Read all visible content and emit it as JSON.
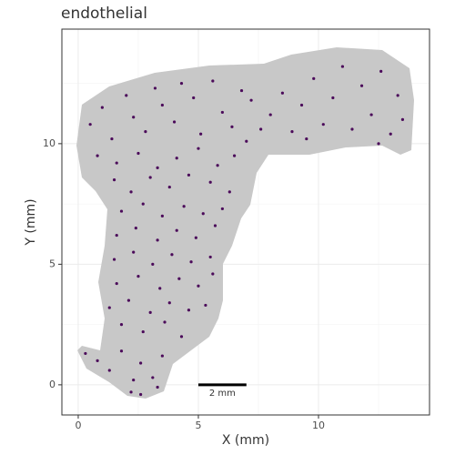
{
  "chart_data": {
    "type": "scatter",
    "title": "endothelial",
    "x_label": "X (mm)",
    "y_label": "Y (mm)",
    "color": "#4b0a5a",
    "grid": true,
    "xlim": [
      -0.68,
      14.62
    ],
    "ylim": [
      -1.25,
      14.75
    ],
    "xticks": [
      0,
      5,
      10
    ],
    "yticks": [
      0,
      5,
      10
    ],
    "scale_bar": {
      "label": "2 mm",
      "x": [
        5,
        7
      ],
      "y": 0
    },
    "x": [
      0.5,
      1.0,
      1.4,
      2.0,
      2.3,
      2.8,
      3.2,
      3.5,
      4.0,
      4.3,
      4.8,
      5.1,
      5.6,
      6.0,
      6.4,
      6.8,
      7.2,
      7.6,
      8.0,
      8.5,
      8.9,
      9.3,
      9.8,
      10.2,
      10.6,
      11.0,
      11.4,
      11.8,
      12.2,
      12.6,
      13.0,
      13.3,
      13.5,
      0.8,
      1.6,
      2.5,
      3.3,
      4.1,
      5.0,
      5.8,
      6.5,
      7.0,
      9.5,
      12.5,
      1.5,
      2.2,
      3.0,
      3.8,
      4.6,
      5.5,
      6.3,
      1.8,
      2.7,
      3.5,
      4.4,
      5.2,
      6.0,
      1.6,
      2.4,
      3.3,
      4.1,
      4.9,
      5.7,
      1.5,
      2.3,
      3.1,
      3.9,
      4.7,
      5.5,
      1.6,
      2.5,
      3.4,
      4.2,
      5.0,
      5.6,
      1.3,
      2.1,
      3.0,
      3.8,
      4.6,
      5.3,
      1.8,
      2.7,
      3.6,
      4.3,
      0.3,
      0.8,
      1.3,
      1.8,
      2.3,
      2.6,
      3.1,
      3.5,
      2.2,
      2.6,
      3.3
    ],
    "values": [
      10.8,
      11.5,
      10.2,
      12.0,
      11.1,
      10.5,
      12.3,
      11.6,
      10.9,
      12.5,
      11.9,
      10.4,
      12.6,
      11.3,
      10.7,
      12.2,
      11.8,
      10.6,
      11.2,
      12.1,
      10.5,
      11.6,
      12.7,
      10.8,
      11.9,
      13.2,
      10.6,
      12.4,
      11.2,
      13.0,
      10.4,
      12.0,
      11.0,
      9.5,
      9.2,
      9.6,
      9.0,
      9.4,
      9.8,
      9.1,
      9.5,
      10.1,
      10.2,
      10.0,
      8.5,
      8.0,
      8.6,
      8.2,
      8.7,
      8.4,
      8.0,
      7.2,
      7.5,
      7.0,
      7.4,
      7.1,
      7.3,
      6.2,
      6.5,
      6.0,
      6.4,
      6.1,
      6.6,
      5.2,
      5.5,
      5.0,
      5.4,
      5.1,
      5.3,
      4.2,
      4.5,
      4.0,
      4.4,
      4.1,
      4.6,
      3.2,
      3.5,
      3.0,
      3.4,
      3.1,
      3.3,
      2.5,
      2.2,
      2.6,
      2.0,
      1.3,
      1.0,
      0.6,
      1.4,
      0.2,
      0.9,
      0.3,
      1.2,
      -0.3,
      -0.4,
      -0.1
    ]
  }
}
